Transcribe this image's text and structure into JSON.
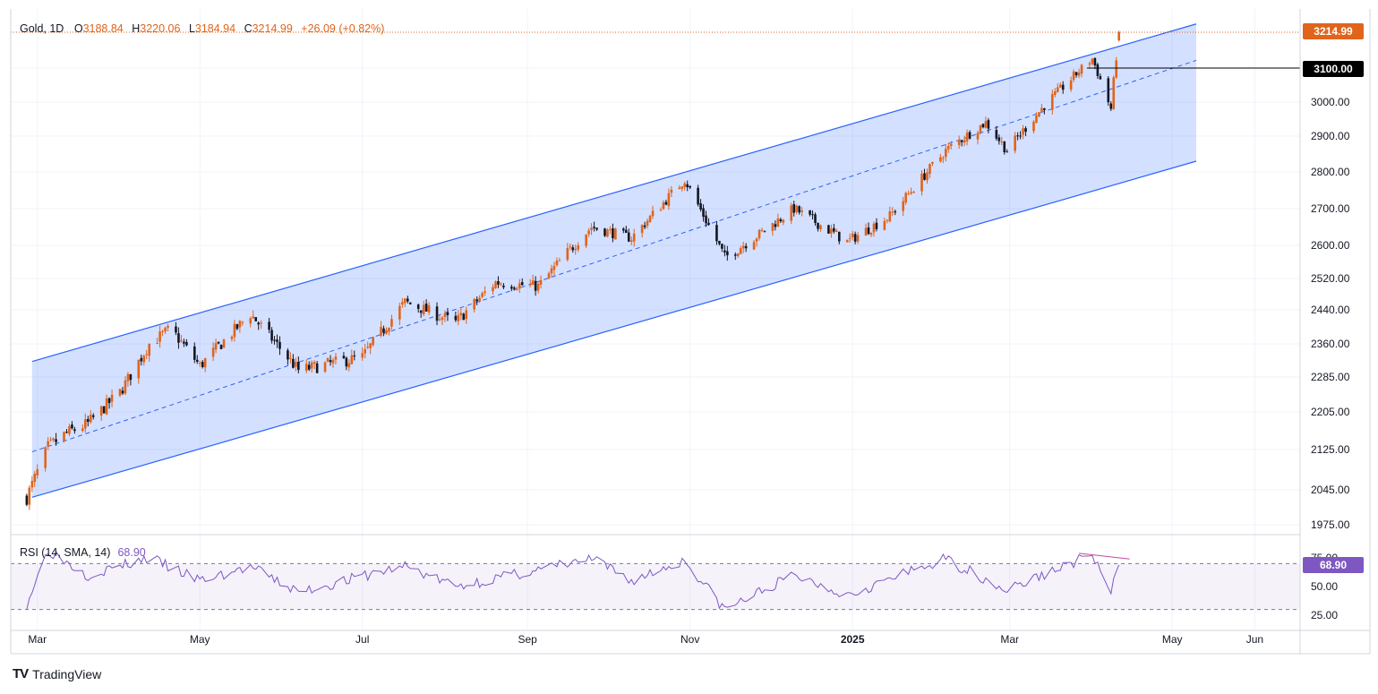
{
  "legend": {
    "symbol": "Gold, 1D",
    "o_label": "O",
    "o_value": "3188.84",
    "h_label": "H",
    "h_value": "3220.06",
    "l_label": "L",
    "l_value": "3184.94",
    "c_label": "C",
    "c_value": "3214.99",
    "change": "+26.09 (+0.82%)"
  },
  "badges": {
    "last_price": "3214.99",
    "level": "3100.00",
    "rsi": "68.90"
  },
  "rsi_legend": {
    "label": "RSI (14, SMA, 14)",
    "value": "68.90"
  },
  "brand": {
    "name": "TradingView",
    "logo": "TV"
  },
  "colors": {
    "up": "#e0641c",
    "down": "#131722",
    "channel_line": "#2962ff",
    "channel_fill": "#2962ff",
    "rsi": "#7e57c2"
  },
  "chart_data": [
    {
      "type": "candlestick",
      "symbol": "Gold",
      "timeframe": "1D",
      "price_axis_ticks": [
        3100.0,
        3000.0,
        2900.0,
        2800.0,
        2700.0,
        2600.0,
        2520.0,
        2440.0,
        2360.0,
        2285.0,
        2205.0,
        2125.0,
        2045.0,
        1975.0
      ],
      "time_axis_labels": [
        "Mar",
        "May",
        "Jul",
        "Sep",
        "Nov",
        "2025",
        "Mar",
        "May",
        "Jun"
      ],
      "ylim": [
        1950,
        3260
      ],
      "grid": true,
      "horizontal_level": 3100.0,
      "last_close": 3214.99,
      "approx_closes": [
        {
          "x": "2024-02-26",
          "y": 2030
        },
        {
          "x": "2024-03-05",
          "y": 2130
        },
        {
          "x": "2024-03-12",
          "y": 2160
        },
        {
          "x": "2024-03-20",
          "y": 2180
        },
        {
          "x": "2024-04-01",
          "y": 2250
        },
        {
          "x": "2024-04-12",
          "y": 2360
        },
        {
          "x": "2024-04-20",
          "y": 2395
        },
        {
          "x": "2024-05-01",
          "y": 2310
        },
        {
          "x": "2024-05-20",
          "y": 2430
        },
        {
          "x": "2024-06-07",
          "y": 2300
        },
        {
          "x": "2024-07-01",
          "y": 2330
        },
        {
          "x": "2024-07-17",
          "y": 2460
        },
        {
          "x": "2024-08-05",
          "y": 2410
        },
        {
          "x": "2024-08-20",
          "y": 2510
        },
        {
          "x": "2024-09-05",
          "y": 2500
        },
        {
          "x": "2024-09-25",
          "y": 2650
        },
        {
          "x": "2024-10-10",
          "y": 2620
        },
        {
          "x": "2024-10-30",
          "y": 2780
        },
        {
          "x": "2024-11-14",
          "y": 2570
        },
        {
          "x": "2024-11-25",
          "y": 2620
        },
        {
          "x": "2024-12-10",
          "y": 2700
        },
        {
          "x": "2024-12-30",
          "y": 2610
        },
        {
          "x": "2025-01-15",
          "y": 2680
        },
        {
          "x": "2025-02-05",
          "y": 2860
        },
        {
          "x": "2025-02-20",
          "y": 2940
        },
        {
          "x": "2025-02-28",
          "y": 2860
        },
        {
          "x": "2025-03-14",
          "y": 2990
        },
        {
          "x": "2025-04-01",
          "y": 3130
        },
        {
          "x": "2025-04-08",
          "y": 2980
        },
        {
          "x": "2025-04-11",
          "y": 3214.99
        }
      ],
      "channel": {
        "upper_start": {
          "x": "2024-02-28",
          "y": 2320
        },
        "upper_end": {
          "x": "2025-05-10",
          "y": 3240
        },
        "lower_start": {
          "x": "2024-02-28",
          "y": 2030
        },
        "lower_end": {
          "x": "2025-05-10",
          "y": 2830
        },
        "midline_dashed": true
      }
    },
    {
      "type": "line",
      "name": "RSI (14, SMA, 14)",
      "ylim": [
        20,
        85
      ],
      "ticks": [
        75.0,
        50.0,
        25.0
      ],
      "bands": [
        70,
        30
      ],
      "last_value": 68.9,
      "approx_values": [
        {
          "x": "2024-02-26",
          "y": 35
        },
        {
          "x": "2024-03-05",
          "y": 82
        },
        {
          "x": "2024-03-20",
          "y": 60
        },
        {
          "x": "2024-04-12",
          "y": 75
        },
        {
          "x": "2024-05-01",
          "y": 55
        },
        {
          "x": "2024-05-20",
          "y": 67
        },
        {
          "x": "2024-06-07",
          "y": 45
        },
        {
          "x": "2024-07-17",
          "y": 68
        },
        {
          "x": "2024-08-05",
          "y": 50
        },
        {
          "x": "2024-09-25",
          "y": 74
        },
        {
          "x": "2024-10-10",
          "y": 55
        },
        {
          "x": "2024-10-30",
          "y": 73
        },
        {
          "x": "2024-11-14",
          "y": 30
        },
        {
          "x": "2024-12-10",
          "y": 60
        },
        {
          "x": "2024-12-30",
          "y": 43
        },
        {
          "x": "2025-02-05",
          "y": 74
        },
        {
          "x": "2025-02-28",
          "y": 47
        },
        {
          "x": "2025-04-01",
          "y": 78
        },
        {
          "x": "2025-04-08",
          "y": 44
        },
        {
          "x": "2025-04-11",
          "y": 68.9
        }
      ]
    }
  ]
}
